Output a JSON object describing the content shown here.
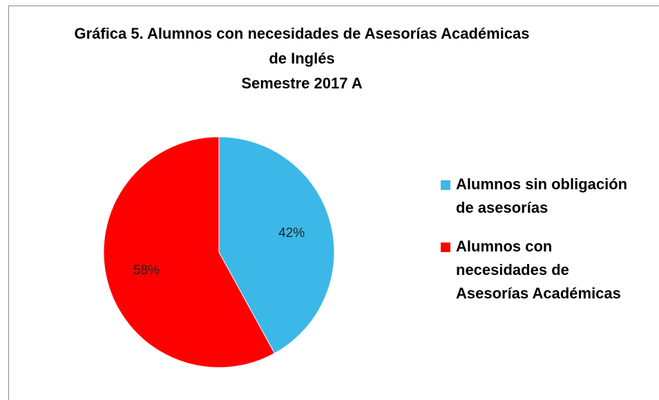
{
  "chart_data": {
    "type": "pie",
    "title": [
      "Gráfica 5. Alumnos con necesidades de Asesorías Académicas",
      "de Inglés",
      "Semestre 2017 A"
    ],
    "categories": [
      "Alumnos sin obligación de asesorías",
      "Alumnos con necesidades de Asesorías Académicas"
    ],
    "values": [
      42,
      58
    ],
    "value_labels": [
      "42%",
      "58%"
    ],
    "colors": [
      "#3cb8e8",
      "#ff0000"
    ],
    "legend": "right"
  }
}
